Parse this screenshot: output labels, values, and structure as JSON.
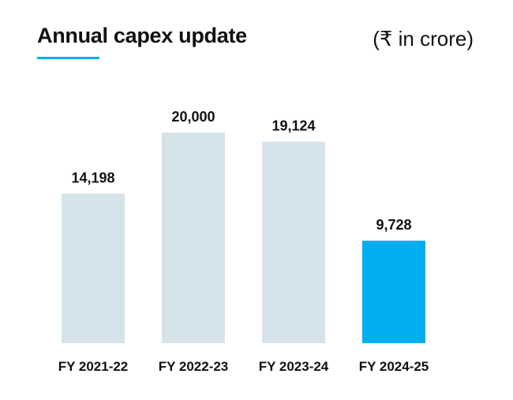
{
  "header": {
    "title": "Annual capex update",
    "unit": "(₹ in crore)"
  },
  "colors": {
    "bar_default": "#d5e3ea",
    "bar_highlight": "#00aeef",
    "accent": "#00aeef"
  },
  "chart_data": {
    "type": "bar",
    "title": "Annual capex update",
    "ylabel": "₹ in crore",
    "xlabel": "",
    "categories": [
      "FY 2021-22",
      "FY 2022-23",
      "FY 2023-24",
      "FY 2024-25"
    ],
    "values": [
      14198,
      20000,
      19124,
      9728
    ],
    "value_labels": [
      "14,198",
      "20,000",
      "19,124",
      "9,728"
    ],
    "highlight_index": 3,
    "ylim": [
      0,
      20000
    ],
    "grid": false,
    "legend": "none"
  }
}
